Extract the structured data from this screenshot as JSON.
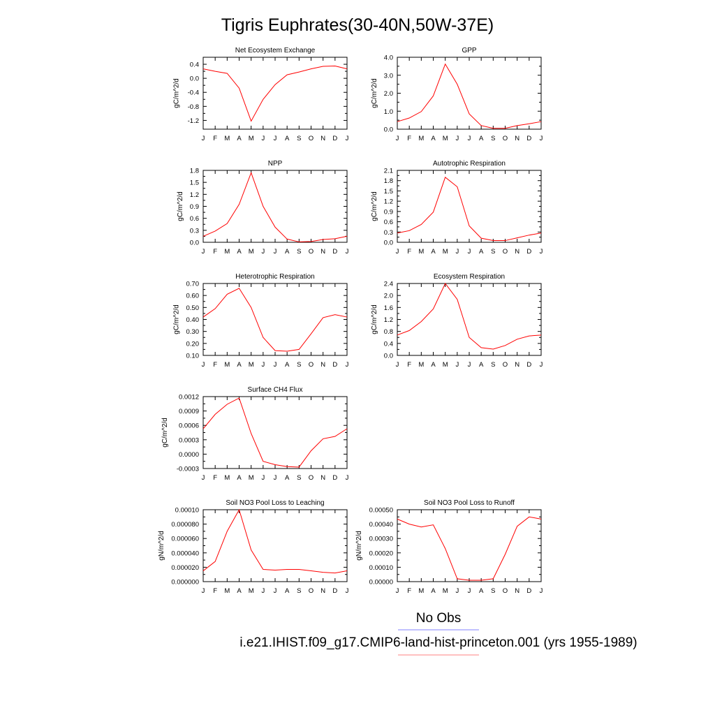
{
  "title": "Tigris Euphrates(30-40N,50W-37E)",
  "legend": {
    "obs_label": "No Obs",
    "obs_color": "#8080ff",
    "model_label": "i.e21.IHIST.f09_g17.CMIP6-land-hist-princeton.001 (yrs 1955-1989)",
    "model_color": "#ff8080"
  },
  "line_color": "#ff0000",
  "chart_data": [
    {
      "type": "line",
      "title": "Net Ecosystem Exchange",
      "ylabel": "gC/m^2/d",
      "categories": [
        "J",
        "F",
        "M",
        "A",
        "M",
        "J",
        "J",
        "A",
        "S",
        "O",
        "N",
        "D",
        "J"
      ],
      "ylim": [
        -1.45,
        0.6
      ],
      "yticks": [
        0.4,
        0.0,
        -0.4,
        -0.8,
        -1.2
      ],
      "yticklabels": [
        "0.4",
        "0.0",
        "-0.4",
        "-0.8",
        "-1.2"
      ],
      "values": [
        0.27,
        0.2,
        0.14,
        -0.28,
        -1.22,
        -0.6,
        -0.18,
        0.1,
        0.18,
        0.27,
        0.34,
        0.35,
        0.27
      ]
    },
    {
      "type": "line",
      "title": "GPP",
      "ylabel": "gC/m^2/d",
      "categories": [
        "J",
        "F",
        "M",
        "A",
        "M",
        "J",
        "J",
        "A",
        "S",
        "O",
        "N",
        "D",
        "J"
      ],
      "ylim": [
        0.0,
        4.0
      ],
      "yticks": [
        4.0,
        3.0,
        2.0,
        1.0,
        0.0
      ],
      "yticklabels": [
        "4.0",
        "3.0",
        "2.0",
        "1.0",
        "0.0"
      ],
      "values": [
        0.42,
        0.62,
        0.98,
        1.85,
        3.62,
        2.5,
        0.85,
        0.2,
        0.05,
        0.05,
        0.2,
        0.3,
        0.42
      ]
    },
    {
      "type": "line",
      "title": "NPP",
      "ylabel": "gC/m^2/d",
      "categories": [
        "J",
        "F",
        "M",
        "A",
        "M",
        "J",
        "J",
        "A",
        "S",
        "O",
        "N",
        "D",
        "J"
      ],
      "ylim": [
        0.0,
        1.8
      ],
      "yticks": [
        1.8,
        1.5,
        1.2,
        0.9,
        0.6,
        0.3,
        0.0
      ],
      "yticklabels": [
        "1.8",
        "1.5",
        "1.2",
        "0.9",
        "0.6",
        "0.3",
        "0.0"
      ],
      "values": [
        0.15,
        0.28,
        0.47,
        0.95,
        1.74,
        0.9,
        0.38,
        0.08,
        0.01,
        0.02,
        0.07,
        0.09,
        0.15
      ]
    },
    {
      "type": "line",
      "title": "Autotrophic Respiration",
      "ylabel": "gC/m^2/d",
      "categories": [
        "J",
        "F",
        "M",
        "A",
        "M",
        "J",
        "J",
        "A",
        "S",
        "O",
        "N",
        "D",
        "J"
      ],
      "ylim": [
        0.0,
        2.1
      ],
      "yticks": [
        2.1,
        1.8,
        1.5,
        1.2,
        0.9,
        0.6,
        0.3,
        0.0
      ],
      "yticklabels": [
        "2.1",
        "1.8",
        "1.5",
        "1.2",
        "0.9",
        "0.6",
        "0.3",
        "0.0"
      ],
      "values": [
        0.27,
        0.34,
        0.52,
        0.88,
        1.9,
        1.62,
        0.48,
        0.12,
        0.05,
        0.05,
        0.13,
        0.21,
        0.27
      ]
    },
    {
      "type": "line",
      "title": "Heterotrophic Respiration",
      "ylabel": "gC/m^2/d",
      "categories": [
        "J",
        "F",
        "M",
        "A",
        "M",
        "J",
        "J",
        "A",
        "S",
        "O",
        "N",
        "D",
        "J"
      ],
      "ylim": [
        0.1,
        0.7
      ],
      "yticks": [
        0.7,
        0.6,
        0.5,
        0.4,
        0.3,
        0.2,
        0.1
      ],
      "yticklabels": [
        "0.70",
        "0.60",
        "0.50",
        "0.40",
        "0.30",
        "0.20",
        "0.10"
      ],
      "values": [
        0.42,
        0.49,
        0.61,
        0.66,
        0.5,
        0.25,
        0.14,
        0.135,
        0.15,
        0.28,
        0.415,
        0.44,
        0.42
      ]
    },
    {
      "type": "line",
      "title": "Ecosystem Respiration",
      "ylabel": "gC/m^2/d",
      "categories": [
        "J",
        "F",
        "M",
        "A",
        "M",
        "J",
        "J",
        "A",
        "S",
        "O",
        "N",
        "D",
        "J"
      ],
      "ylim": [
        0.0,
        2.4
      ],
      "yticks": [
        2.4,
        2.0,
        1.6,
        1.2,
        0.8,
        0.4,
        0.0
      ],
      "yticklabels": [
        "2.4",
        "2.0",
        "1.6",
        "1.2",
        "0.8",
        "0.4",
        "0.0"
      ],
      "values": [
        0.68,
        0.83,
        1.13,
        1.55,
        2.4,
        1.87,
        0.6,
        0.26,
        0.21,
        0.33,
        0.54,
        0.65,
        0.68
      ]
    },
    {
      "type": "line",
      "title": "Surface CH4 Flux",
      "ylabel": "gC/m^2/d",
      "categories": [
        "J",
        "F",
        "M",
        "A",
        "M",
        "J",
        "J",
        "A",
        "S",
        "O",
        "N",
        "D",
        "J"
      ],
      "ylim": [
        -0.0003,
        0.0012
      ],
      "yticks": [
        0.0012,
        0.0009,
        0.0006,
        0.0003,
        0.0,
        -0.0003
      ],
      "yticklabels": [
        "0.0012",
        "0.0009",
        "0.0006",
        "0.0003",
        "0.0000",
        "-0.0003"
      ],
      "values": [
        0.00053,
        0.00083,
        0.00104,
        0.00117,
        0.00043,
        -0.00015,
        -0.00022,
        -0.00026,
        -0.00027,
        7e-05,
        0.00032,
        0.00037,
        0.00053
      ]
    },
    {
      "type": "line",
      "title": "Soil NO3 Pool Loss to Leaching",
      "ylabel": "gN/m^2/d",
      "categories": [
        "J",
        "F",
        "M",
        "A",
        "M",
        "J",
        "J",
        "A",
        "S",
        "O",
        "N",
        "D",
        "J"
      ],
      "ylim": [
        0.0,
        0.0001
      ],
      "yticks": [
        0.0001,
        8e-05,
        6e-05,
        4e-05,
        2e-05,
        0.0
      ],
      "yticklabels": [
        "0.00010",
        "0.000080",
        "0.000060",
        "0.000040",
        "0.000020",
        "0.000000"
      ],
      "values": [
        1.5e-05,
        2.8e-05,
        7e-05,
        0.0001,
        4.4e-05,
        1.7e-05,
        1.6e-05,
        1.7e-05,
        1.7e-05,
        1.5e-05,
        1.3e-05,
        1.2e-05,
        1.5e-05
      ]
    },
    {
      "type": "line",
      "title": "Soil NO3 Pool Loss to Runoff",
      "ylabel": "gN/m^2/d",
      "categories": [
        "J",
        "F",
        "M",
        "A",
        "M",
        "J",
        "J",
        "A",
        "S",
        "O",
        "N",
        "D",
        "J"
      ],
      "ylim": [
        0.0,
        0.0005
      ],
      "yticks": [
        0.0005,
        0.0004,
        0.0003,
        0.0002,
        0.0001,
        0.0
      ],
      "yticklabels": [
        "0.00050",
        "0.00040",
        "0.00030",
        "0.00020",
        "0.00010",
        "0.00000"
      ],
      "values": [
        0.000435,
        0.0004,
        0.00038,
        0.000395,
        0.00023,
        2e-05,
        1e-05,
        1e-05,
        2e-05,
        0.00019,
        0.000385,
        0.00045,
        0.000435
      ]
    }
  ]
}
